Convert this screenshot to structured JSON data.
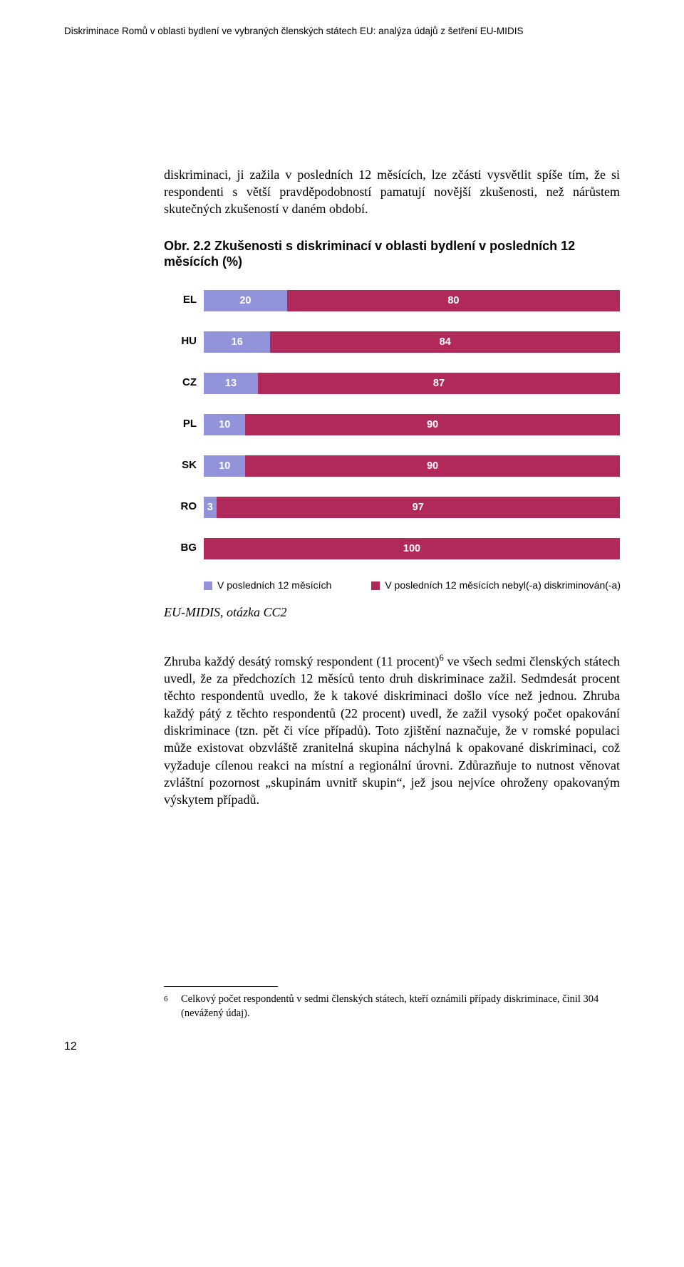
{
  "header": "Diskriminace Romů v oblasti bydlení ve vybraných členských státech EU: analýza údajů z šetření EU-MIDIS",
  "para1": "diskriminaci, ji zažila v posledních 12 měsících, lze zčásti vysvětlit spíše tím, že si respondenti s větší pravděpodobností pamatují novější zkušenosti, než nárůstem skutečných zkušeností v daném období.",
  "chart": {
    "title": "Obr. 2.2 Zkušenosti s diskriminací v oblasti bydlení v posledních 12 měsících (%)",
    "type": "stacked-bar-horizontal",
    "colors": {
      "yes": "#9393db",
      "no": "#b1295b"
    },
    "rows": [
      {
        "label": "EL",
        "yes": 20,
        "no": 80
      },
      {
        "label": "HU",
        "yes": 16,
        "no": 84
      },
      {
        "label": "CZ",
        "yes": 13,
        "no": 87
      },
      {
        "label": "PL",
        "yes": 10,
        "no": 90
      },
      {
        "label": "SK",
        "yes": 10,
        "no": 90
      },
      {
        "label": "RO",
        "yes": 3,
        "no": 97
      },
      {
        "label": "BG",
        "yes": 0,
        "no": 100
      }
    ],
    "legend": {
      "yes": "V posledních 12 měsících",
      "no": "V posledních 12 měsících nebyl(-a) diskriminován(-a)"
    }
  },
  "source": "EU-MIDIS, otázka CC2",
  "para2_pre": "Zhruba každý desátý romský respondent (11 procent)",
  "para2_sup": "6",
  "para2_post": " ve všech sedmi členských státech uvedl, že za předchozích 12 měsíců tento druh diskriminace zažil. Sedmdesát procent těchto respondentů uvedlo, že k takové diskriminaci došlo více než jednou. Zhruba každý pátý z těchto respondentů (22 procent) uvedl, že zažil vysoký počet opakování diskriminace (tzn. pět či více případů). Toto zjištění naznačuje, že v romské populaci může existovat obzvláště zranitelná skupina náchylná k opakované diskriminaci, což vyžaduje cílenou reakci na místní a regionální úrovni. Zdůrazňuje to nutnost věnovat zvláštní pozornost „skupinám uvnitř skupin“, jež jsou nejvíce ohroženy opakovaným výskytem případů.",
  "footnote": {
    "num": "6",
    "text": "Celkový počet respondentů v sedmi členských státech, kteří oznámili případy diskriminace, činil 304 (nevážený údaj)."
  },
  "pagenum": "12"
}
